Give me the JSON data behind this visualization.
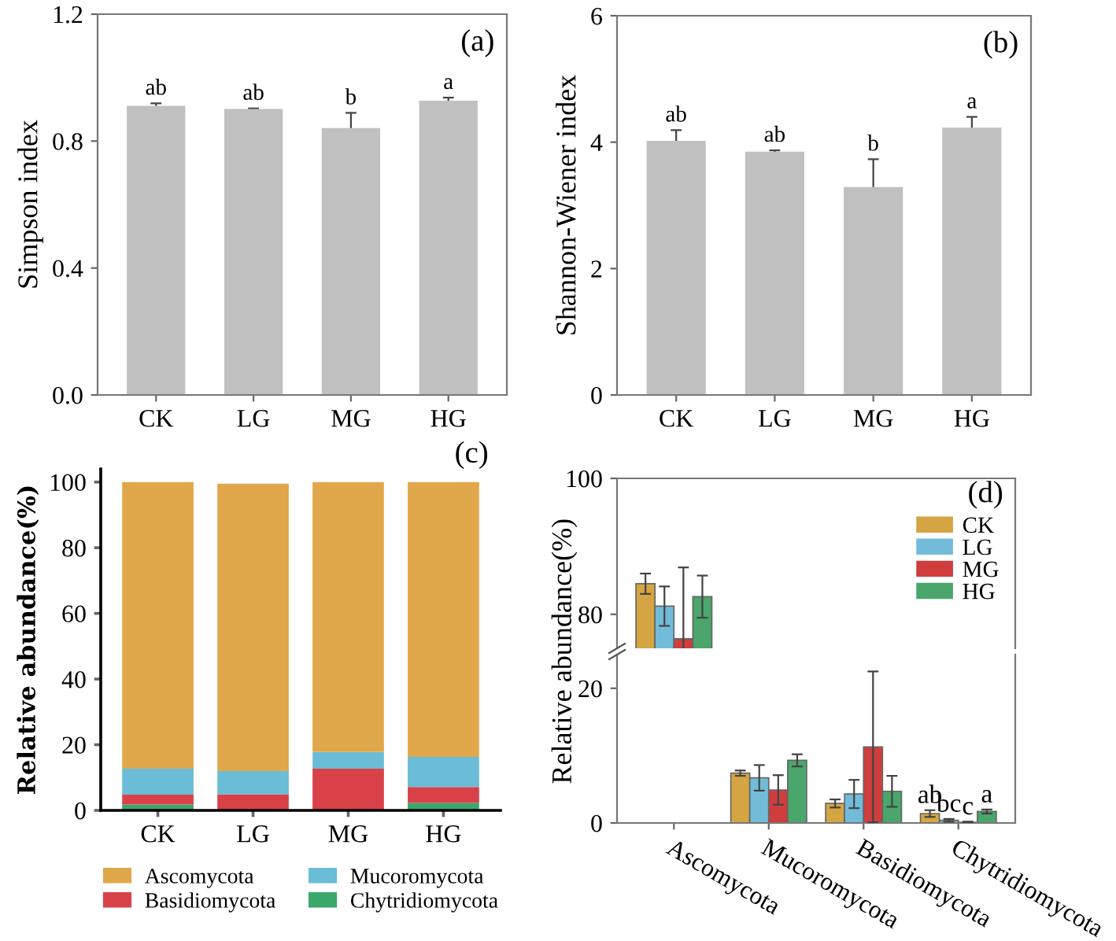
{
  "chart_data": [
    {
      "type": "bar",
      "ylabel": "Simpson index",
      "categories": [
        "CK",
        "LG",
        "MG",
        "HG"
      ],
      "values": [
        0.911,
        0.901,
        0.841,
        0.927
      ],
      "errors": [
        0.008,
        0.002,
        0.048,
        0.01
      ],
      "value_labels": [
        "ab",
        "ab",
        "b",
        "a"
      ],
      "color": "#c0c0c0",
      "ylim": [
        0,
        1.2
      ],
      "yticks": [
        {
          "value": 0,
          "label": "0.0"
        },
        0.4,
        0.8,
        1.2
      ],
      "annotations": [
        "(a)"
      ],
      "grid": false
    },
    {
      "type": "bar",
      "ylabel": "Shannon-Wiener index",
      "categories": [
        "CK",
        "LG",
        "MG",
        "HG"
      ],
      "values": [
        4.02,
        3.85,
        3.29,
        4.23
      ],
      "errors": [
        0.17,
        0.02,
        0.44,
        0.17
      ],
      "value_labels": [
        "ab",
        "ab",
        "b",
        "a"
      ],
      "color": "#c0c0c0",
      "ylim": [
        0,
        6
      ],
      "yticks": [
        0,
        2,
        4,
        6
      ],
      "annotations": [
        "(b)"
      ],
      "grid": false
    },
    {
      "type": "bar",
      "stacked": true,
      "ylabel": "Relative abundance(%)",
      "categories": [
        "CK",
        "LG",
        "MG",
        "HG"
      ],
      "legend": "bottom",
      "grid": false,
      "ylim": [
        0,
        104
      ],
      "yticks": [
        0,
        20,
        40,
        60,
        80,
        100
      ],
      "annotations": [
        "(c)"
      ],
      "series": [
        {
          "name": "Chytridiomycota",
          "color": "#3aa86b",
          "values": [
            1.8,
            null,
            0.2,
            2.3
          ]
        },
        {
          "name": "Basidiomycota",
          "color": "#d94148",
          "values": [
            3.0,
            4.9,
            12.5,
            4.8
          ]
        },
        {
          "name": "Mucoromycota",
          "color": "#6bbcd6",
          "values": [
            7.9,
            7.1,
            5.1,
            9.2
          ]
        },
        {
          "name": "Ascomycota",
          "color": "#e0a84a",
          "values": [
            87.3,
            87.5,
            82.2,
            83.7
          ]
        }
      ]
    },
    {
      "type": "bar",
      "categories": [
        null,
        null,
        null,
        null
      ],
      "legend": "top right",
      "grid": false,
      "ylim": [
        75,
        100
      ],
      "yticks": [
        80,
        100
      ],
      "tick_labels": "y",
      "annotations": [
        "(d)"
      ],
      "series": [
        {
          "name": "CK",
          "color": "#d4a542",
          "values": [
            84.5,
            null,
            null,
            null
          ],
          "errors": [
            1.5,
            null,
            null,
            null
          ]
        },
        {
          "name": "LG",
          "color": "#72bcd9",
          "values": [
            81.2,
            null,
            null,
            null
          ],
          "errors": [
            2.9,
            null,
            null,
            null
          ]
        },
        {
          "name": "MG",
          "color": "#cf3d3d",
          "values": [
            76.4,
            null,
            null,
            null
          ],
          "errors": [
            10.5,
            null,
            null,
            null
          ]
        },
        {
          "name": "HG",
          "color": "#4aa66b",
          "values": [
            82.6,
            null,
            null,
            null
          ],
          "errors": [
            3.1,
            null,
            null,
            null
          ]
        }
      ]
    },
    {
      "type": "bar",
      "ylabel": "Relative abundance(%)",
      "categories": [
        "Ascomycota",
        "Mucoromycota",
        "Basidiomycota",
        "Chytridiomycota"
      ],
      "grid": false,
      "ylim": [
        0,
        25
      ],
      "yticks": [
        0,
        20
      ],
      "series": [
        {
          "color": "#d4a542",
          "values": [
            null,
            7.4,
            2.9,
            1.4
          ],
          "errors": [
            null,
            0.4,
            0.6,
            0.5
          ],
          "value_labels": [
            null,
            null,
            null,
            "ab"
          ]
        },
        {
          "color": "#72bcd9",
          "values": [
            null,
            6.7,
            4.3,
            0.4
          ],
          "errors": [
            null,
            1.9,
            2.1,
            0.2
          ],
          "value_labels": [
            null,
            null,
            null,
            "bc"
          ]
        },
        {
          "color": "#cf3d3d",
          "values": [
            null,
            4.9,
            11.3,
            0.1
          ],
          "errors": [
            null,
            2.2,
            11.2,
            0.1
          ],
          "value_labels": [
            null,
            null,
            null,
            "c"
          ]
        },
        {
          "color": "#4aa66b",
          "values": [
            null,
            9.3,
            4.7,
            1.7
          ],
          "errors": [
            null,
            0.9,
            2.3,
            0.3
          ],
          "value_labels": [
            null,
            null,
            null,
            "a"
          ]
        }
      ]
    }
  ]
}
